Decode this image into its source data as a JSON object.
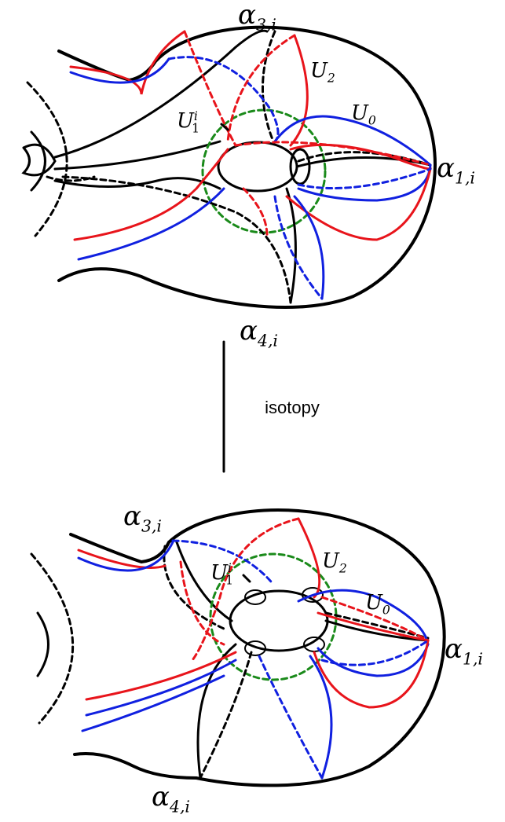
{
  "top_figure": {
    "labels": [
      {
        "symbol": "α",
        "sub": "3,i"
      },
      {
        "symbol": "U",
        "sub": "2"
      },
      {
        "symbol": "U",
        "sub": "1",
        "sup": "i"
      },
      {
        "symbol": "U",
        "sub": "0"
      },
      {
        "symbol": "α",
        "sub": "1,i"
      },
      {
        "symbol": "α",
        "sub": "4,i"
      }
    ]
  },
  "arrow": {
    "label": "isotopy"
  },
  "bottom_figure": {
    "labels": [
      {
        "symbol": "α",
        "sub": "3,i"
      },
      {
        "symbol": "U",
        "sub": "2"
      },
      {
        "symbol": "U",
        "sub": "1",
        "sup": "i"
      },
      {
        "symbol": "U",
        "sub": "0"
      },
      {
        "symbol": "α",
        "sub": "1,i"
      },
      {
        "symbol": "α",
        "sub": "4,i"
      }
    ]
  }
}
